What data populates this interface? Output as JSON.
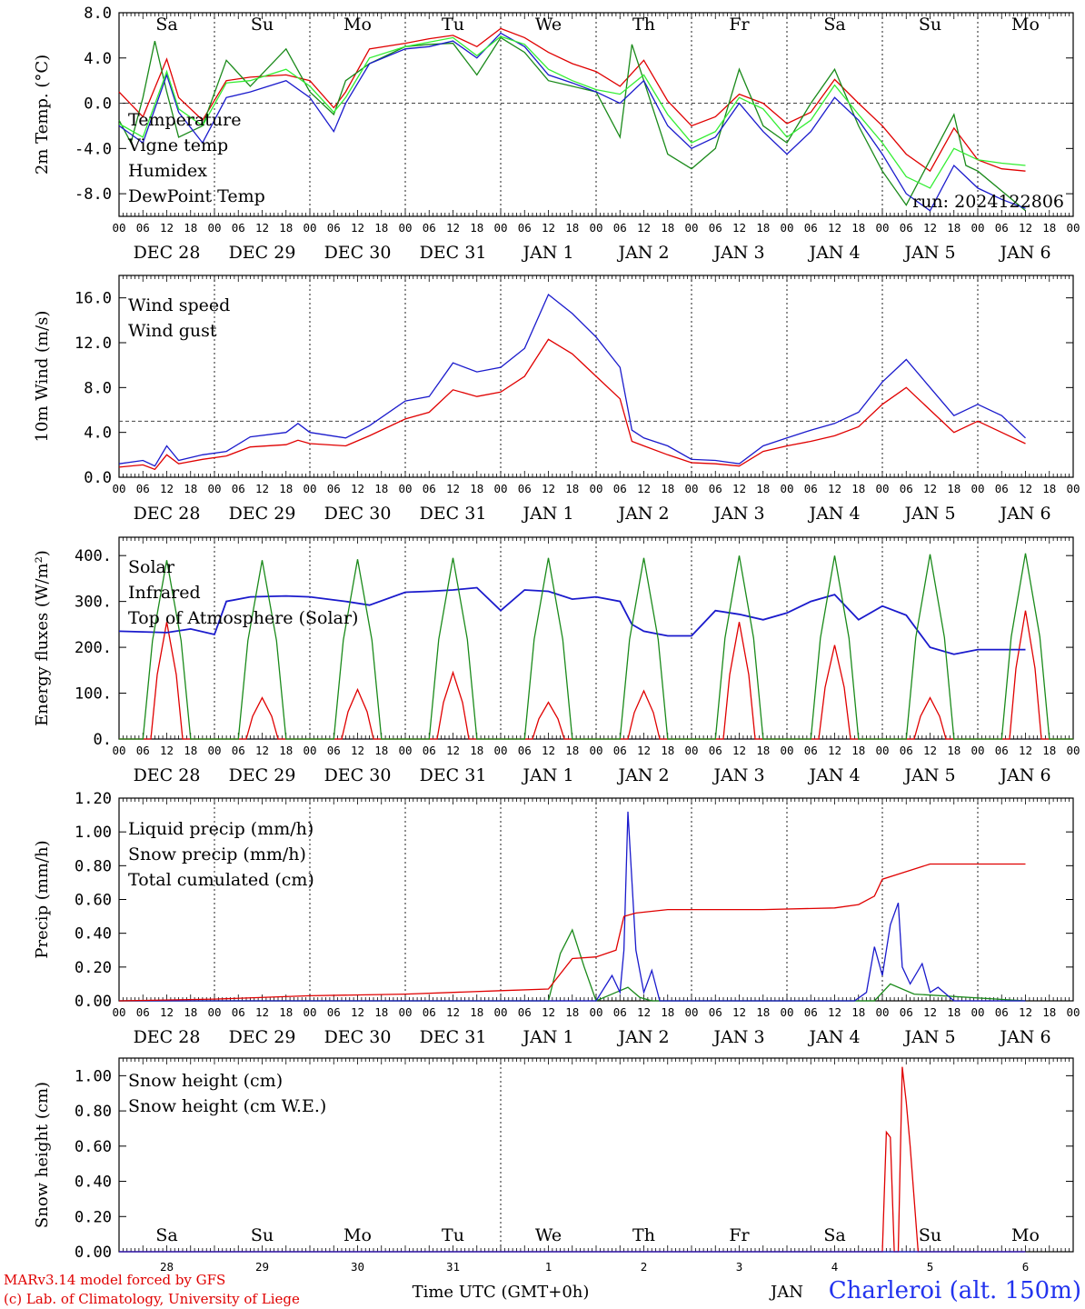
{
  "run_label": "run: 2024122806",
  "x_axis": {
    "hour_ticks": [
      "00",
      "06",
      "12",
      "18"
    ],
    "date_labels": [
      "DEC 28",
      "DEC 29",
      "DEC 30",
      "DEC 31",
      "JAN  1",
      "JAN  2",
      "JAN  3",
      "JAN  4",
      "JAN  5",
      "JAN  6"
    ],
    "weekday_labels": [
      "Sa",
      "Su",
      "Mo",
      "Tu",
      "We",
      "Th",
      "Fr",
      "Sa",
      "Su",
      "Mo"
    ],
    "weekday_colors": [
      "#e00000",
      "#e00000",
      "#000000",
      "#000000",
      "#000000",
      "#000000",
      "#000000",
      "#e00000",
      "#e00000",
      "#000000"
    ],
    "day_numbers": [
      "28",
      "29",
      "30",
      "31",
      "1",
      "2",
      "3",
      "4",
      "5",
      "6"
    ],
    "month_label": "JAN",
    "title": "Time UTC (GMT+0h)"
  },
  "footer": {
    "line1": "MARv3.14 model forced by GFS",
    "line2": "(c) Lab. of Climatology, University of Liege",
    "station": "Charleroi (alt. 150m)"
  },
  "chart_data": [
    {
      "type": "line",
      "id": "temp",
      "ylabel": "2m Temp. (°C)",
      "ylim": [
        -10,
        8
      ],
      "yticks": [
        8,
        4,
        0,
        -4,
        -8
      ],
      "ytick_labels": [
        "8.0",
        "4.0",
        "0.0",
        "-4.0",
        "-8.0"
      ],
      "ref_line": 0,
      "x_unit": "hours since Dec 28 00 UTC",
      "series": [
        {
          "name": "Temperature",
          "color": "#e00000",
          "x": [
            0,
            6,
            12,
            15,
            21,
            27,
            33,
            42,
            48,
            54,
            57,
            63,
            72,
            78,
            84,
            90,
            96,
            102,
            108,
            114,
            120,
            126,
            132,
            138,
            144,
            150,
            156,
            162,
            168,
            174,
            180,
            186,
            192,
            198,
            204,
            210,
            216,
            222,
            228
          ],
          "y": [
            1.0,
            -1.2,
            3.9,
            0.5,
            -1.5,
            2.0,
            2.3,
            2.5,
            2.0,
            -0.4,
            1.0,
            4.8,
            5.3,
            5.7,
            6.0,
            5.0,
            6.6,
            5.8,
            4.5,
            3.5,
            2.8,
            1.5,
            3.8,
            0.2,
            -2.0,
            -1.2,
            0.8,
            0.0,
            -1.8,
            -0.8,
            2.1,
            0.0,
            -2.0,
            -4.5,
            -6.0,
            -2.2,
            -5.0,
            -5.8,
            -6.0
          ]
        },
        {
          "name": "Vigne temp",
          "color": "#1a8a1a",
          "x": [
            0,
            3,
            6,
            9,
            12,
            15,
            21,
            27,
            33,
            42,
            48,
            54,
            57,
            63,
            72,
            78,
            84,
            90,
            96,
            102,
            108,
            114,
            120,
            126,
            129,
            132,
            138,
            144,
            150,
            156,
            162,
            168,
            174,
            180,
            186,
            192,
            198,
            204,
            210,
            213,
            216,
            228
          ],
          "y": [
            -1.5,
            -3.5,
            0.5,
            5.5,
            1.0,
            -3.0,
            -2.0,
            3.8,
            1.5,
            4.8,
            1.0,
            -1.0,
            2.0,
            3.5,
            5.0,
            5.2,
            5.3,
            2.5,
            5.8,
            4.5,
            2.0,
            1.5,
            1.0,
            -3.0,
            5.2,
            2.0,
            -4.5,
            -5.8,
            -4.0,
            3.0,
            -2.0,
            -3.5,
            0.0,
            3.0,
            -2.0,
            -6.0,
            -9.0,
            -5.0,
            -1.0,
            -5.5,
            -6.0,
            -9.5
          ]
        },
        {
          "name": "Humidex",
          "color": "#1a1acc",
          "x": [
            0,
            6,
            12,
            15,
            21,
            27,
            33,
            42,
            48,
            54,
            57,
            63,
            72,
            78,
            84,
            90,
            96,
            102,
            108,
            114,
            120,
            126,
            132,
            138,
            144,
            150,
            156,
            162,
            168,
            174,
            180,
            186,
            192,
            198,
            204,
            210,
            216,
            222,
            228
          ],
          "y": [
            -2.0,
            -3.5,
            2.5,
            -0.8,
            -3.5,
            0.5,
            1.0,
            2.0,
            0.5,
            -2.5,
            0.0,
            3.5,
            4.8,
            5.0,
            5.5,
            4.0,
            6.2,
            5.0,
            2.5,
            1.8,
            1.0,
            0.0,
            2.0,
            -2.0,
            -4.0,
            -3.0,
            0.0,
            -2.5,
            -4.5,
            -2.5,
            0.5,
            -1.5,
            -4.5,
            -8.0,
            -9.5,
            -5.5,
            -7.5,
            -8.5,
            -9.3
          ]
        },
        {
          "name": "DewPoint Temp",
          "color": "#33ee33",
          "x": [
            0,
            6,
            12,
            15,
            21,
            27,
            33,
            42,
            48,
            54,
            57,
            63,
            72,
            78,
            84,
            90,
            96,
            102,
            108,
            114,
            120,
            126,
            132,
            138,
            144,
            150,
            156,
            162,
            168,
            174,
            180,
            186,
            192,
            198,
            204,
            210,
            216,
            222,
            228
          ],
          "y": [
            -1.8,
            -3.0,
            2.8,
            -0.5,
            -2.0,
            1.8,
            2.0,
            3.0,
            1.5,
            -0.8,
            0.5,
            4.0,
            5.0,
            5.4,
            5.8,
            4.2,
            5.9,
            5.2,
            3.0,
            2.0,
            1.2,
            0.8,
            2.5,
            -1.0,
            -3.5,
            -2.5,
            0.5,
            -0.5,
            -3.0,
            -1.5,
            1.6,
            -1.0,
            -3.5,
            -6.5,
            -7.5,
            -4.0,
            -5.0,
            -5.3,
            -5.5
          ]
        }
      ]
    },
    {
      "type": "line",
      "id": "wind",
      "ylabel": "10m Wind (m/s)",
      "ylim": [
        0,
        18
      ],
      "yticks": [
        0,
        4,
        8,
        12,
        16
      ],
      "ytick_labels": [
        "0.0",
        "4.0",
        "8.0",
        "12.0",
        "16.0"
      ],
      "ref_line": 5,
      "series": [
        {
          "name": "Wind speed",
          "color": "#e00000",
          "x": [
            0,
            6,
            9,
            12,
            15,
            21,
            27,
            33,
            42,
            45,
            48,
            57,
            63,
            72,
            78,
            84,
            90,
            96,
            102,
            108,
            114,
            120,
            126,
            129,
            132,
            138,
            144,
            150,
            156,
            162,
            168,
            174,
            180,
            186,
            192,
            198,
            204,
            210,
            216,
            222,
            228
          ],
          "y": [
            0.9,
            1.1,
            0.7,
            2.0,
            1.2,
            1.6,
            1.9,
            2.7,
            2.9,
            3.3,
            3.0,
            2.8,
            3.7,
            5.2,
            5.8,
            7.8,
            7.2,
            7.6,
            9.0,
            12.3,
            11.0,
            9.0,
            7.0,
            3.2,
            2.8,
            2.0,
            1.3,
            1.2,
            1.0,
            2.3,
            2.8,
            3.2,
            3.7,
            4.5,
            6.5,
            8.0,
            6.0,
            4.0,
            5.0,
            4.0,
            3.0
          ]
        },
        {
          "name": "Wind gust",
          "color": "#1a1acc",
          "x": [
            0,
            6,
            9,
            12,
            15,
            21,
            27,
            33,
            42,
            45,
            48,
            57,
            63,
            72,
            78,
            84,
            90,
            96,
            102,
            108,
            114,
            120,
            126,
            129,
            132,
            138,
            144,
            150,
            156,
            162,
            168,
            174,
            180,
            186,
            192,
            198,
            204,
            210,
            216,
            222,
            228
          ],
          "y": [
            1.2,
            1.5,
            1.0,
            2.8,
            1.5,
            2.0,
            2.3,
            3.6,
            4.0,
            4.8,
            4.0,
            3.5,
            4.6,
            6.8,
            7.2,
            10.2,
            9.4,
            9.8,
            11.5,
            16.3,
            14.6,
            12.5,
            9.8,
            4.2,
            3.5,
            2.8,
            1.6,
            1.5,
            1.2,
            2.8,
            3.5,
            4.2,
            4.8,
            5.8,
            8.5,
            10.5,
            8.0,
            5.5,
            6.5,
            5.5,
            3.5
          ]
        }
      ]
    },
    {
      "type": "line",
      "id": "energy",
      "ylabel": "Energy fluxes (W/m²)",
      "ylim": [
        0,
        440
      ],
      "yticks": [
        0,
        100,
        200,
        300,
        400
      ],
      "ytick_labels": [
        "0.",
        "100.",
        "200.",
        "300.",
        "400."
      ],
      "series": [
        {
          "name": "Solar",
          "color": "#e00000",
          "peaks": [
            255,
            90,
            108,
            145,
            80,
            105,
            255,
            205,
            90,
            280
          ]
        },
        {
          "name": "Infrared",
          "color": "#1a1acc",
          "x": [
            0,
            12,
            18,
            24,
            27,
            33,
            42,
            48,
            57,
            63,
            72,
            78,
            84,
            90,
            96,
            102,
            108,
            114,
            120,
            126,
            129,
            132,
            138,
            144,
            150,
            156,
            162,
            168,
            174,
            180,
            186,
            192,
            198,
            204,
            210,
            216,
            222,
            228
          ],
          "y": [
            235,
            232,
            240,
            228,
            300,
            310,
            312,
            310,
            300,
            292,
            320,
            322,
            325,
            330,
            280,
            325,
            322,
            305,
            310,
            300,
            250,
            235,
            225,
            225,
            280,
            272,
            260,
            275,
            300,
            315,
            260,
            290,
            270,
            200,
            185,
            195,
            195,
            195
          ]
        },
        {
          "name": "Top of Atmosphere (Solar)",
          "color": "#1a8a1a",
          "peaks": [
            390,
            390,
            392,
            395,
            395,
            395,
            400,
            400,
            403,
            405
          ]
        }
      ]
    },
    {
      "type": "line",
      "id": "precip",
      "ylabel": "Precip (mm/h)",
      "ylim": [
        0,
        1.2
      ],
      "yticks": [
        0,
        0.2,
        0.4,
        0.6,
        0.8,
        1.0,
        1.2
      ],
      "ytick_labels": [
        "0.00",
        "0.20",
        "0.40",
        "0.60",
        "0.80",
        "1.00",
        "1.20"
      ],
      "series": [
        {
          "name": "Liquid precip (mm/h)",
          "color": "#1a8a1a",
          "x": [
            0,
            108,
            111,
            114,
            117,
            120,
            125,
            128,
            131,
            134,
            162,
            190,
            194,
            200,
            228
          ],
          "y": [
            0,
            0,
            0.28,
            0.42,
            0.2,
            0,
            0.05,
            0.08,
            0.02,
            0,
            0,
            0,
            0.1,
            0.04,
            0
          ]
        },
        {
          "name": "Snow precip (mm/h)",
          "color": "#1a1acc",
          "x": [
            0,
            120,
            124,
            126,
            127,
            128,
            130,
            132,
            134,
            136,
            138,
            185,
            188,
            190,
            192,
            194,
            196,
            197,
            199,
            202,
            204,
            206,
            210,
            228
          ],
          "y": [
            0,
            0,
            0.15,
            0.05,
            0.3,
            1.12,
            0.3,
            0.05,
            0.18,
            0,
            0,
            0,
            0.05,
            0.32,
            0.15,
            0.45,
            0.58,
            0.2,
            0.1,
            0.22,
            0.05,
            0.08,
            0,
            0
          ]
        },
        {
          "name": "Total cumulated (cm)",
          "color": "#e00000",
          "x": [
            0,
            24,
            48,
            72,
            96,
            108,
            114,
            120,
            125,
            127,
            130,
            138,
            150,
            162,
            180,
            186,
            190,
            192,
            196,
            204,
            210,
            228
          ],
          "y": [
            0,
            0.01,
            0.03,
            0.04,
            0.06,
            0.07,
            0.25,
            0.26,
            0.3,
            0.5,
            0.52,
            0.54,
            0.54,
            0.54,
            0.55,
            0.57,
            0.62,
            0.72,
            0.75,
            0.81,
            0.81,
            0.81
          ]
        }
      ]
    },
    {
      "type": "line",
      "id": "snow",
      "ylabel": "Snow height (cm)",
      "ylim": [
        0,
        1.1
      ],
      "yticks": [
        0,
        0.2,
        0.4,
        0.6,
        0.8,
        1.0
      ],
      "ytick_labels": [
        "0.00",
        "0.20",
        "0.40",
        "0.60",
        "0.80",
        "1.00"
      ],
      "series": [
        {
          "name": "Snow height (cm)",
          "color": "#e00000",
          "x": [
            0,
            192,
            193,
            194,
            195,
            196,
            197,
            198,
            199,
            201,
            202,
            228
          ],
          "y": [
            0,
            0,
            0.68,
            0.65,
            0,
            0,
            1.05,
            0.85,
            0.6,
            0,
            0,
            0
          ]
        },
        {
          "name": "Snow height (cm W.E.)",
          "color": "#1a1acc",
          "x": [
            0,
            228
          ],
          "y": [
            0,
            0
          ]
        }
      ]
    }
  ]
}
